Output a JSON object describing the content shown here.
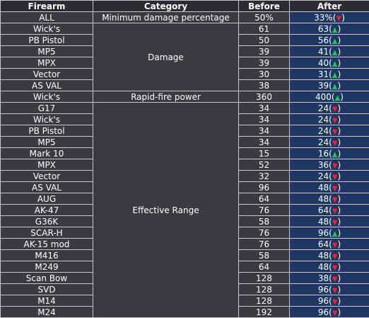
{
  "headers": {
    "firearm": "Firearm",
    "category": "Category",
    "before": "Before",
    "after": "After"
  },
  "colors": {
    "up_arrow": "#22c35a",
    "down_arrow": "#ee1f26",
    "after_bg": "#1f3764",
    "cell_bg": "#393b3f"
  },
  "rows": [
    {
      "firearm": "ALL",
      "category": "Minimum damage percentage",
      "cat_span": 1,
      "before": "50%",
      "after": "33%",
      "dir": "down"
    },
    {
      "firearm": "Wick's",
      "category": "Damage",
      "cat_span": 6,
      "before": "61",
      "after": "63",
      "dir": "up"
    },
    {
      "firearm": "PB Pistol",
      "before": "50",
      "after": "56",
      "dir": "up"
    },
    {
      "firearm": "MP5",
      "before": "39",
      "after": "41",
      "dir": "up"
    },
    {
      "firearm": "MPX",
      "before": "39",
      "after": "40",
      "dir": "up"
    },
    {
      "firearm": "Vector",
      "before": "30",
      "after": "31",
      "dir": "up"
    },
    {
      "firearm": "AS VAL",
      "before": "38",
      "after": "39",
      "dir": "up"
    },
    {
      "firearm": "Wick's",
      "category": "Rapid-fire power",
      "cat_span": 1,
      "before": "360",
      "after": "400",
      "dir": "up"
    },
    {
      "firearm": "G17",
      "category": "Effective Range",
      "cat_span": 19,
      "before": "34",
      "after": "24",
      "dir": "down"
    },
    {
      "firearm": "Wick's",
      "before": "34",
      "after": "24",
      "dir": "down"
    },
    {
      "firearm": "PB Pistol",
      "before": "34",
      "after": "24",
      "dir": "down"
    },
    {
      "firearm": "MP5",
      "before": "34",
      "after": "24",
      "dir": "down"
    },
    {
      "firearm": "Mark 10",
      "before": "15",
      "after": "16",
      "dir": "up"
    },
    {
      "firearm": "MPX",
      "before": "52",
      "after": "36",
      "dir": "down"
    },
    {
      "firearm": "Vector",
      "before": "32",
      "after": "24",
      "dir": "down"
    },
    {
      "firearm": "AS VAL",
      "before": "96",
      "after": "48",
      "dir": "down"
    },
    {
      "firearm": "AUG",
      "before": "64",
      "after": "48",
      "dir": "down"
    },
    {
      "firearm": "AK-47",
      "before": "76",
      "after": "64",
      "dir": "down"
    },
    {
      "firearm": "G36K",
      "before": "58",
      "after": "48",
      "dir": "down"
    },
    {
      "firearm": "SCAR-H",
      "before": "76",
      "after": "96",
      "dir": "up"
    },
    {
      "firearm": "AK-15 mod",
      "before": "76",
      "after": "64",
      "dir": "down"
    },
    {
      "firearm": "M416",
      "before": "58",
      "after": "48",
      "dir": "down"
    },
    {
      "firearm": "M249",
      "before": "64",
      "after": "48",
      "dir": "down"
    },
    {
      "firearm": "Scan Bow",
      "before": "128",
      "after": "38",
      "dir": "down"
    },
    {
      "firearm": "SVD",
      "before": "128",
      "after": "96",
      "dir": "down"
    },
    {
      "firearm": "M14",
      "before": "128",
      "after": "96",
      "dir": "down"
    },
    {
      "firearm": "M24",
      "before": "192",
      "after": "96",
      "dir": "down"
    }
  ]
}
